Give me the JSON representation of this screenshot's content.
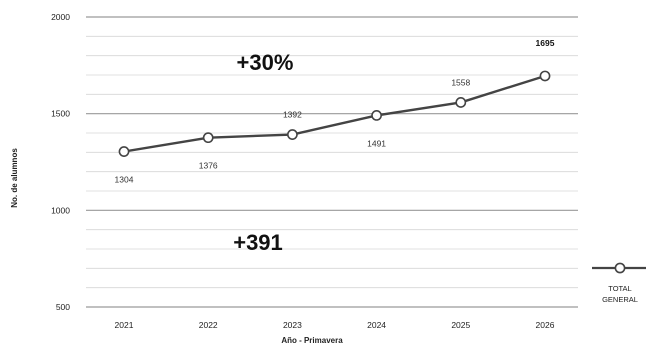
{
  "chart_data": {
    "type": "line",
    "title": "",
    "xlabel": "Año - Primavera",
    "ylabel": "No. de alumnos",
    "categories": [
      "2021",
      "2022",
      "2023",
      "2024",
      "2025",
      "2026"
    ],
    "ylim": [
      500,
      2000
    ],
    "yticks": [
      500,
      1000,
      1500,
      2000
    ],
    "grid": true,
    "series": [
      {
        "name": "TOTAL GENERAL",
        "color": "#444444",
        "values": [
          1304,
          1376,
          1392,
          1491,
          1558,
          1695
        ],
        "labels": [
          "1304",
          "1376",
          "1392",
          "1491",
          "1558",
          "1695"
        ]
      }
    ],
    "annotations": [
      {
        "text": "+30%"
      },
      {
        "text": "+391"
      }
    ],
    "legend": {
      "placement": "right",
      "lines": [
        "TOTAL",
        "GENERAL"
      ]
    }
  }
}
